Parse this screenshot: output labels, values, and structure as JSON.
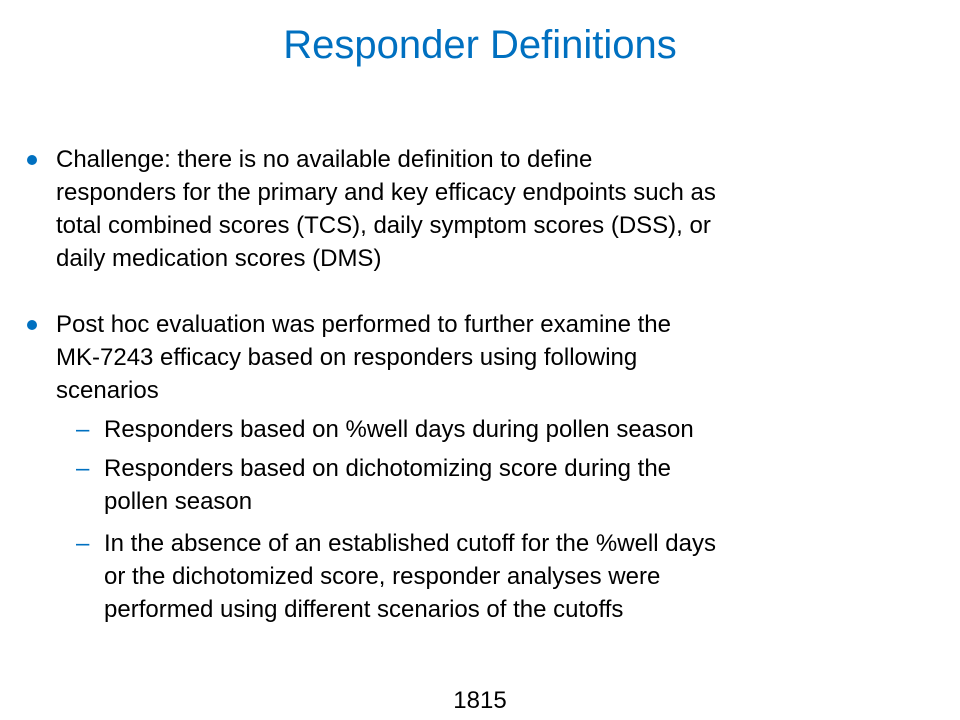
{
  "title": "Responder Definitions",
  "colors": {
    "title": "#0070c0",
    "bullet": "#0070c0",
    "dash": "#0070c0",
    "text": "#000000"
  },
  "bullets": [
    {
      "lines": [
        "Challenge: there is no available definition to define",
        "responders for the primary and key efficacy endpoints such as",
        "total combined scores (TCS), daily symptom scores (DSS), or",
        "daily medication scores (DMS)"
      ]
    },
    {
      "lines": [
        "Post hoc evaluation was performed to further examine the",
        "MK-7243 efficacy based on responders using following",
        "scenarios"
      ],
      "sub_items": [
        {
          "dash": "–",
          "lines": [
            "Responders based on %well days during pollen season"
          ]
        },
        {
          "dash": "–",
          "lines": [
            "Responders based on dichotomizing score during the",
            "pollen season"
          ]
        },
        {
          "dash": "–",
          "lines": [
            "In the absence of an established cutoff for the %well days",
            "or the dichotomized score, responder analyses were",
            "performed using different scenarios of the cutoffs"
          ]
        }
      ]
    }
  ],
  "page_number": "1815"
}
